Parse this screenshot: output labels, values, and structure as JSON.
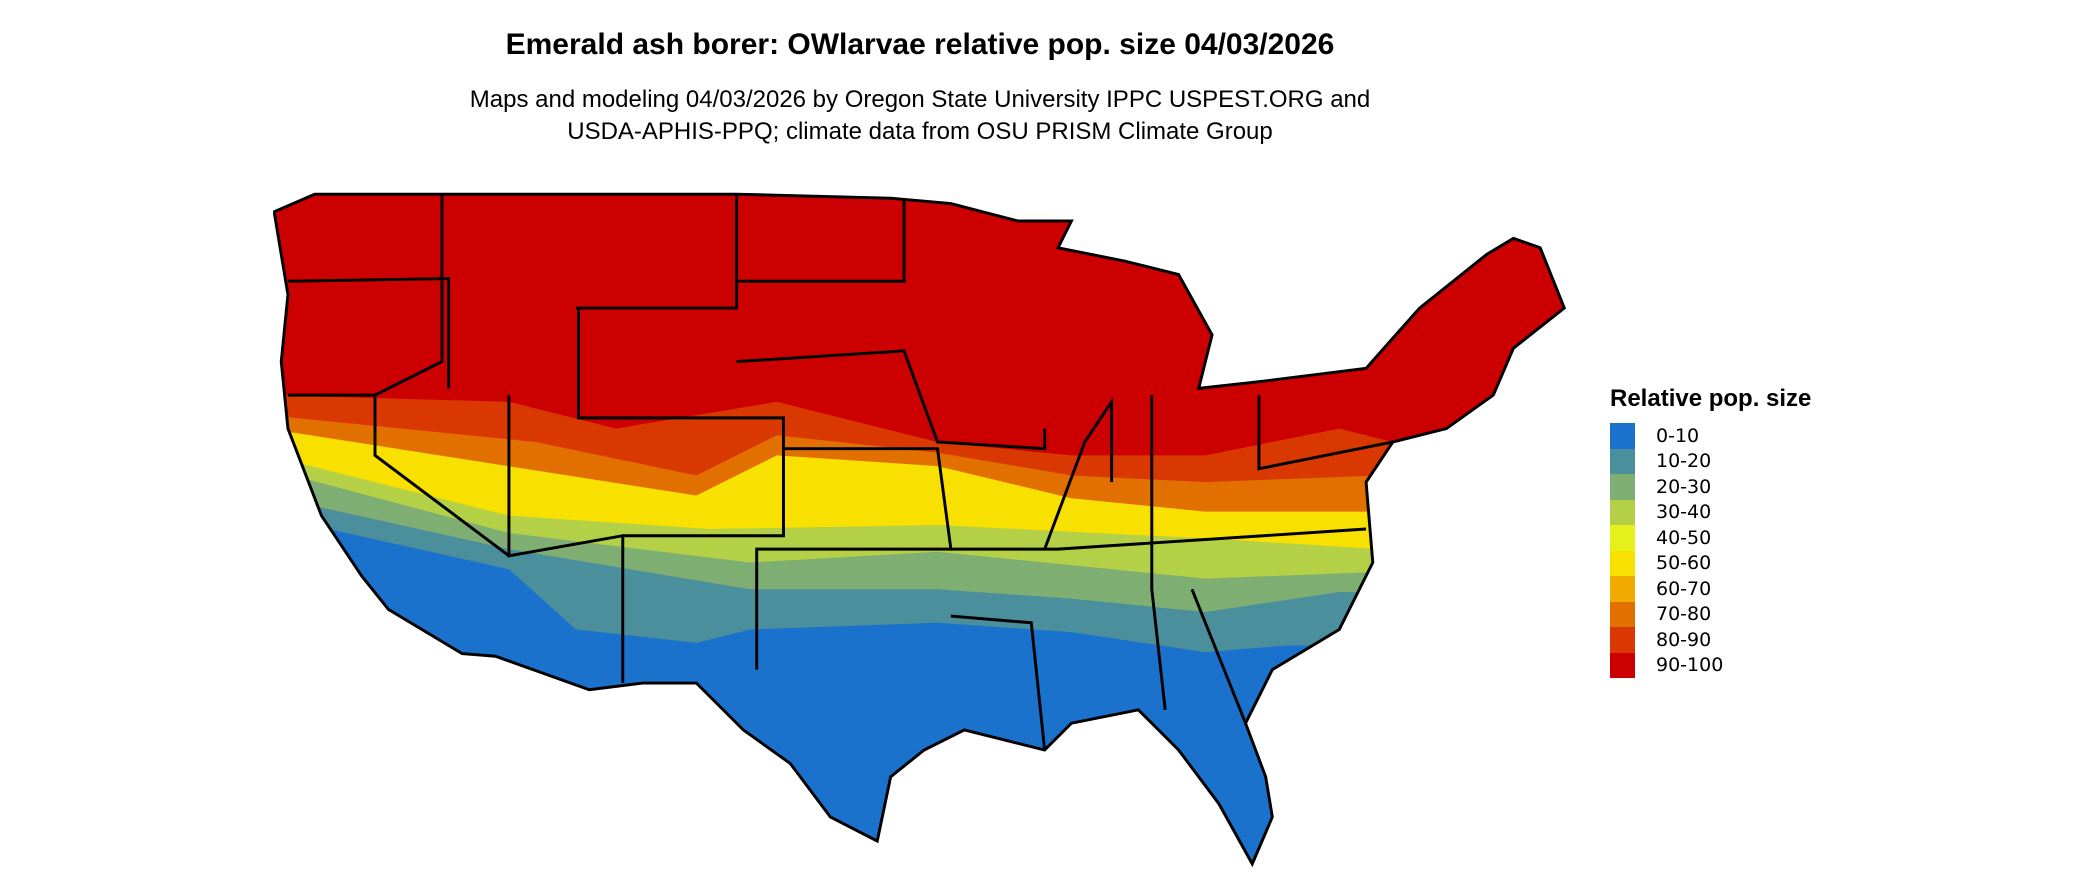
{
  "title": "Emerald ash borer: OWlarvae relative pop. size 04/03/2026",
  "subtitle_line1": "Maps and modeling 04/03/2026 by Oregon State University IPPC USPEST.ORG and",
  "subtitle_line2": "USDA-APHIS-PPQ; climate data from OSU PRISM Climate Group",
  "legend": {
    "title": "Relative pop. size",
    "items": [
      {
        "label": "0-10",
        "color": "#1a72cc"
      },
      {
        "label": "10-20",
        "color": "#4a8f9b"
      },
      {
        "label": "20-30",
        "color": "#7fae72"
      },
      {
        "label": "30-40",
        "color": "#b3d046"
      },
      {
        "label": "40-50",
        "color": "#e6f01a"
      },
      {
        "label": "50-60",
        "color": "#f8e000"
      },
      {
        "label": "60-70",
        "color": "#f0aa00"
      },
      {
        "label": "70-80",
        "color": "#e27000"
      },
      {
        "label": "80-90",
        "color": "#d93800"
      },
      {
        "label": "90-100",
        "color": "#cc0000"
      }
    ]
  }
}
